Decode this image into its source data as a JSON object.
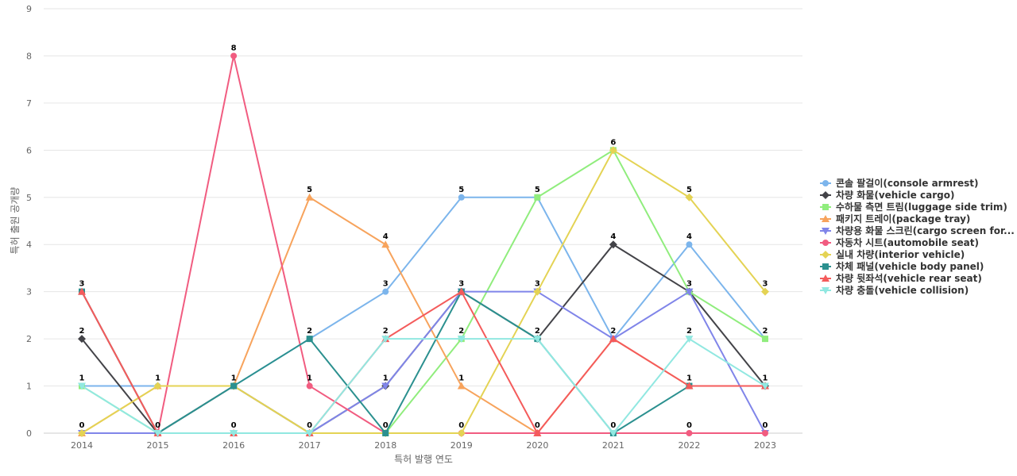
{
  "chart_data": {
    "type": "line",
    "xlabel": "특허 발행 연도",
    "ylabel": "특허 출원 공개량",
    "ylim": [
      0,
      9
    ],
    "yticks": [
      0,
      1,
      2,
      3,
      4,
      5,
      6,
      7,
      8,
      9
    ],
    "grid": true,
    "legend_position": "right",
    "x": [
      "2014",
      "2015",
      "2016",
      "2017",
      "2018",
      "2019",
      "2020",
      "2021",
      "2022",
      "2023"
    ],
    "series": [
      {
        "name": "콘솔 팔걸이(console armrest)",
        "color": "#7cb5ec",
        "marker": "circle",
        "values": [
          1,
          1,
          1,
          2,
          3,
          5,
          5,
          2,
          4,
          2
        ]
      },
      {
        "name": "차량 화물(vehicle cargo)",
        "color": "#434348",
        "marker": "diamond",
        "values": [
          2,
          0,
          1,
          0,
          1,
          3,
          2,
          4,
          3,
          1
        ]
      },
      {
        "name": "수하물 측면 트림(luggage side trim)",
        "color": "#90ed7d",
        "marker": "square",
        "values": [
          1,
          0,
          0,
          0,
          0,
          2,
          5,
          6,
          3,
          2
        ]
      },
      {
        "name": "패키지 트레이(package tray)",
        "color": "#f7a35c",
        "marker": "triangle",
        "values": [
          0,
          1,
          1,
          5,
          4,
          1,
          0,
          2,
          1,
          1
        ]
      },
      {
        "name": "차량용 화물 스크린(cargo screen for...",
        "color": "#8085e9",
        "marker": "triangle-down",
        "values": [
          0,
          0,
          0,
          0,
          1,
          3,
          3,
          2,
          3,
          0
        ]
      },
      {
        "name": "자동차 시트(automobile seat)",
        "color": "#f15c80",
        "marker": "circle",
        "values": [
          3,
          0,
          8,
          1,
          0,
          0,
          0,
          0,
          0,
          0
        ]
      },
      {
        "name": "실내 차량(interior vehicle)",
        "color": "#e4d354",
        "marker": "diamond",
        "values": [
          0,
          1,
          1,
          0,
          0,
          0,
          3,
          6,
          5,
          3
        ]
      },
      {
        "name": "차체 패널(vehicle body panel)",
        "color": "#2b908f",
        "marker": "square",
        "values": [
          3,
          0,
          1,
          2,
          0,
          3,
          2,
          0,
          1,
          1
        ]
      },
      {
        "name": "차량 뒷좌석(vehicle rear seat)",
        "color": "#f45b5b",
        "marker": "triangle",
        "values": [
          3,
          0,
          0,
          0,
          2,
          3,
          0,
          2,
          1,
          1
        ]
      },
      {
        "name": "차량 충돌(vehicle collision)",
        "color": "#91e8e1",
        "marker": "triangle-down",
        "values": [
          1,
          0,
          0,
          0,
          2,
          2,
          2,
          0,
          2,
          1
        ]
      }
    ],
    "data_labels": [
      [
        3,
        2,
        1,
        0
      ],
      [
        1,
        0
      ],
      [
        8,
        1,
        0
      ],
      [
        5,
        2,
        1,
        0
      ],
      [
        4,
        3,
        2,
        1,
        0
      ],
      [
        5,
        3,
        2,
        1,
        0
      ],
      [
        5,
        3,
        2,
        0
      ],
      [
        6,
        4,
        2,
        0
      ],
      [
        5,
        4,
        3,
        2,
        1,
        0
      ],
      [
        3,
        2,
        1,
        0
      ]
    ]
  }
}
